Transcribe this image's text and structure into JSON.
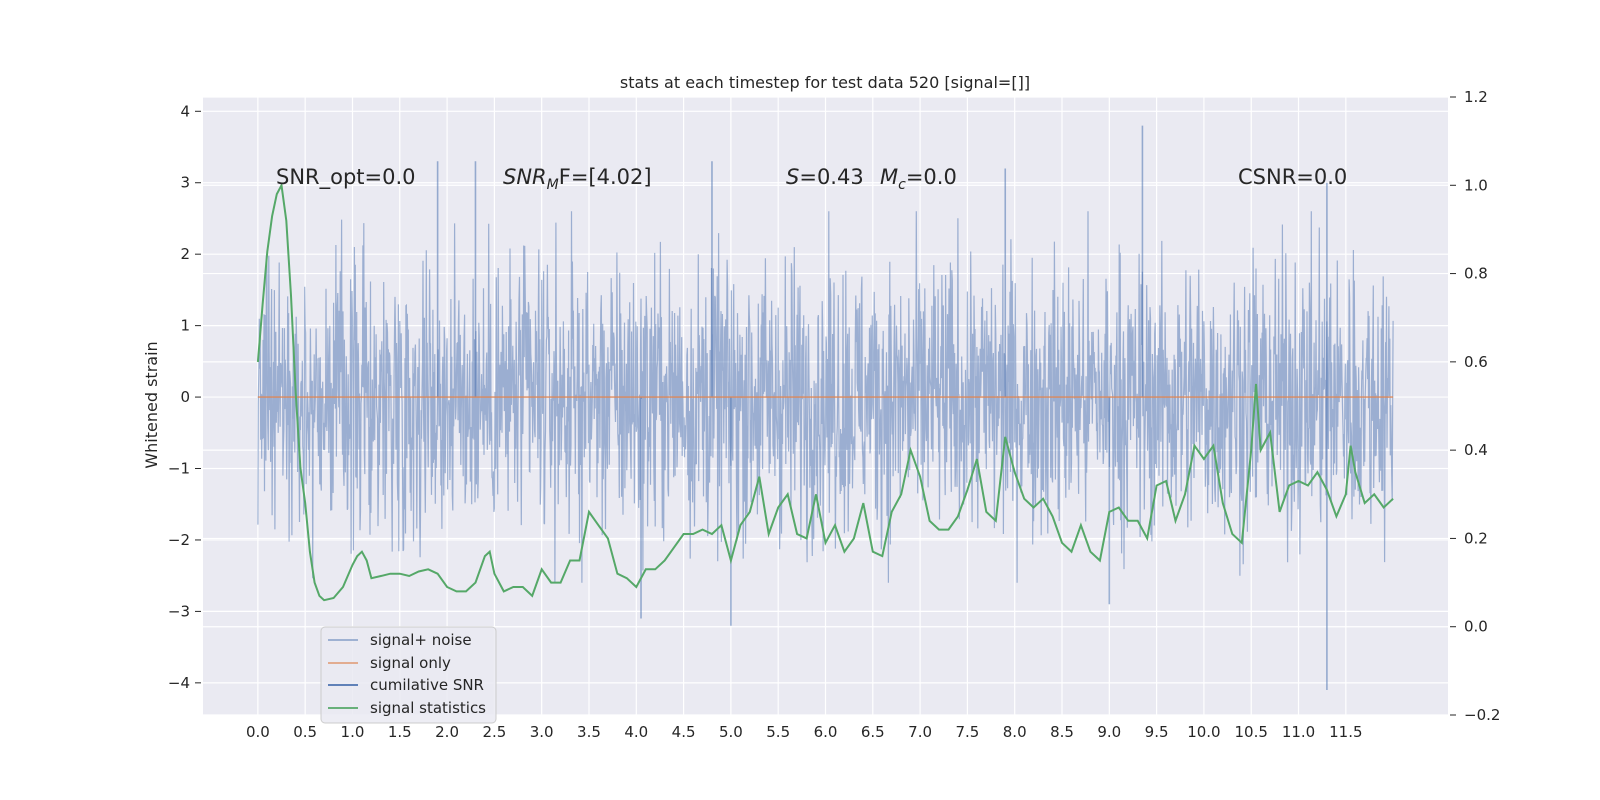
{
  "chart_data": {
    "type": "line",
    "title": "stats at each timestep for test data 520 [signal=[]]",
    "ylabel": "Whitened strain",
    "xlim": [
      -0.58,
      12.58
    ],
    "ylim": [
      -4.45,
      4.2
    ],
    "y2lim": [
      -0.2,
      1.2
    ],
    "xticks": [
      "0.0",
      "0.5",
      "1.0",
      "1.5",
      "2.0",
      "2.5",
      "3.0",
      "3.5",
      "4.0",
      "4.5",
      "5.0",
      "5.5",
      "6.0",
      "6.5",
      "7.0",
      "7.5",
      "8.0",
      "8.5",
      "9.0",
      "9.5",
      "10.0",
      "10.5",
      "11.0",
      "11.5"
    ],
    "xtick_values": [
      0,
      0.5,
      1,
      1.5,
      2,
      2.5,
      3,
      3.5,
      4,
      4.5,
      5,
      5.5,
      6,
      6.5,
      7,
      7.5,
      8,
      8.5,
      9,
      9.5,
      10,
      10.5,
      11,
      11.5
    ],
    "yticks": [
      4,
      3,
      2,
      1,
      0,
      -1,
      -2,
      -3,
      -4
    ],
    "ytick_labels": [
      "4",
      "3",
      "2",
      "1",
      "0",
      "−1",
      "−2",
      "−3",
      "−4"
    ],
    "y2ticks": [
      1.2,
      1.0,
      0.8,
      0.6,
      0.4,
      0.2,
      0.0,
      -0.2
    ],
    "y2tick_labels": [
      "1.2",
      "1.0",
      "0.8",
      "0.6",
      "0.4",
      "0.2",
      "0.0",
      "−0.2"
    ],
    "grid": true,
    "legend_placement": "lower-left",
    "annotations": {
      "snr_opt": "SNR_opt=0.0",
      "snr_mf_main": "SNR",
      "snr_mf_sub": "M",
      "snr_mf_rest": "F=[4.02]",
      "s_main": "S",
      "s_rest": "=0.43",
      "mc_main": "M",
      "mc_sub": "c",
      "mc_rest": "=0.0",
      "csnr": "CSNR=0.0"
    },
    "series": [
      {
        "name": "signal+ noise",
        "color": "#4c72b0",
        "x_range": [
          0.0,
          12.0
        ],
        "typical_range": [
          -1.5,
          1.7
        ],
        "extremes": [
          [
            1.9,
            3.3
          ],
          [
            2.3,
            3.3
          ],
          [
            4.8,
            3.3
          ],
          [
            5.0,
            -3.2
          ],
          [
            7.9,
            3.2
          ],
          [
            9.35,
            3.8
          ],
          [
            11.3,
            -4.1
          ],
          [
            4.05,
            -3.1
          ],
          [
            9.0,
            -2.9
          ],
          [
            11.3,
            3.0
          ]
        ]
      },
      {
        "name": "signal only",
        "color": "#dd8452",
        "x_range": [
          0.0,
          12.0
        ],
        "values_constant": 0.0
      },
      {
        "name": "cumilative SNR",
        "color": "#4c72b0",
        "values": []
      },
      {
        "name": "signal statistics",
        "color": "#55a868",
        "axis": "right",
        "points": [
          [
            0.0,
            0.6
          ],
          [
            0.05,
            0.73
          ],
          [
            0.1,
            0.85
          ],
          [
            0.15,
            0.93
          ],
          [
            0.2,
            0.98
          ],
          [
            0.25,
            1.0
          ],
          [
            0.3,
            0.92
          ],
          [
            0.35,
            0.75
          ],
          [
            0.4,
            0.53
          ],
          [
            0.45,
            0.36
          ],
          [
            0.5,
            0.28
          ],
          [
            0.55,
            0.17
          ],
          [
            0.6,
            0.1
          ],
          [
            0.65,
            0.07
          ],
          [
            0.7,
            0.06
          ],
          [
            0.8,
            0.065
          ],
          [
            0.9,
            0.09
          ],
          [
            1.0,
            0.14
          ],
          [
            1.05,
            0.16
          ],
          [
            1.1,
            0.17
          ],
          [
            1.15,
            0.15
          ],
          [
            1.2,
            0.11
          ],
          [
            1.3,
            0.115
          ],
          [
            1.4,
            0.12
          ],
          [
            1.5,
            0.12
          ],
          [
            1.6,
            0.115
          ],
          [
            1.7,
            0.125
          ],
          [
            1.8,
            0.13
          ],
          [
            1.9,
            0.12
          ],
          [
            2.0,
            0.09
          ],
          [
            2.1,
            0.08
          ],
          [
            2.2,
            0.08
          ],
          [
            2.3,
            0.1
          ],
          [
            2.4,
            0.16
          ],
          [
            2.45,
            0.17
          ],
          [
            2.5,
            0.12
          ],
          [
            2.6,
            0.08
          ],
          [
            2.7,
            0.09
          ],
          [
            2.8,
            0.09
          ],
          [
            2.9,
            0.07
          ],
          [
            3.0,
            0.13
          ],
          [
            3.1,
            0.1
          ],
          [
            3.2,
            0.1
          ],
          [
            3.3,
            0.15
          ],
          [
            3.4,
            0.15
          ],
          [
            3.5,
            0.26
          ],
          [
            3.6,
            0.23
          ],
          [
            3.7,
            0.2
          ],
          [
            3.8,
            0.12
          ],
          [
            3.9,
            0.11
          ],
          [
            4.0,
            0.09
          ],
          [
            4.1,
            0.13
          ],
          [
            4.2,
            0.13
          ],
          [
            4.3,
            0.15
          ],
          [
            4.4,
            0.18
          ],
          [
            4.5,
            0.21
          ],
          [
            4.6,
            0.21
          ],
          [
            4.7,
            0.22
          ],
          [
            4.8,
            0.21
          ],
          [
            4.9,
            0.23
          ],
          [
            5.0,
            0.15
          ],
          [
            5.1,
            0.23
          ],
          [
            5.2,
            0.26
          ],
          [
            5.3,
            0.34
          ],
          [
            5.4,
            0.21
          ],
          [
            5.5,
            0.27
          ],
          [
            5.6,
            0.3
          ],
          [
            5.7,
            0.21
          ],
          [
            5.8,
            0.2
          ],
          [
            5.9,
            0.3
          ],
          [
            6.0,
            0.19
          ],
          [
            6.1,
            0.23
          ],
          [
            6.2,
            0.17
          ],
          [
            6.3,
            0.2
          ],
          [
            6.4,
            0.28
          ],
          [
            6.5,
            0.17
          ],
          [
            6.6,
            0.16
          ],
          [
            6.7,
            0.26
          ],
          [
            6.8,
            0.3
          ],
          [
            6.9,
            0.4
          ],
          [
            7.0,
            0.34
          ],
          [
            7.1,
            0.24
          ],
          [
            7.2,
            0.22
          ],
          [
            7.3,
            0.22
          ],
          [
            7.4,
            0.25
          ],
          [
            7.5,
            0.31
          ],
          [
            7.6,
            0.38
          ],
          [
            7.7,
            0.26
          ],
          [
            7.8,
            0.24
          ],
          [
            7.9,
            0.43
          ],
          [
            8.0,
            0.35
          ],
          [
            8.1,
            0.29
          ],
          [
            8.2,
            0.27
          ],
          [
            8.3,
            0.29
          ],
          [
            8.4,
            0.25
          ],
          [
            8.5,
            0.19
          ],
          [
            8.6,
            0.17
          ],
          [
            8.7,
            0.23
          ],
          [
            8.8,
            0.17
          ],
          [
            8.9,
            0.15
          ],
          [
            9.0,
            0.26
          ],
          [
            9.1,
            0.27
          ],
          [
            9.2,
            0.24
          ],
          [
            9.3,
            0.24
          ],
          [
            9.4,
            0.2
          ],
          [
            9.5,
            0.32
          ],
          [
            9.6,
            0.33
          ],
          [
            9.7,
            0.24
          ],
          [
            9.8,
            0.3
          ],
          [
            9.9,
            0.41
          ],
          [
            10.0,
            0.38
          ],
          [
            10.1,
            0.41
          ],
          [
            10.2,
            0.28
          ],
          [
            10.3,
            0.21
          ],
          [
            10.4,
            0.19
          ],
          [
            10.5,
            0.4
          ],
          [
            10.55,
            0.55
          ],
          [
            10.6,
            0.4
          ],
          [
            10.7,
            0.44
          ],
          [
            10.8,
            0.26
          ],
          [
            10.9,
            0.32
          ],
          [
            11.0,
            0.33
          ],
          [
            11.1,
            0.32
          ],
          [
            11.2,
            0.35
          ],
          [
            11.3,
            0.31
          ],
          [
            11.4,
            0.25
          ],
          [
            11.5,
            0.3
          ],
          [
            11.55,
            0.41
          ],
          [
            11.6,
            0.35
          ],
          [
            11.7,
            0.28
          ],
          [
            11.8,
            0.3
          ],
          [
            11.9,
            0.27
          ],
          [
            12.0,
            0.29
          ]
        ]
      }
    ]
  }
}
